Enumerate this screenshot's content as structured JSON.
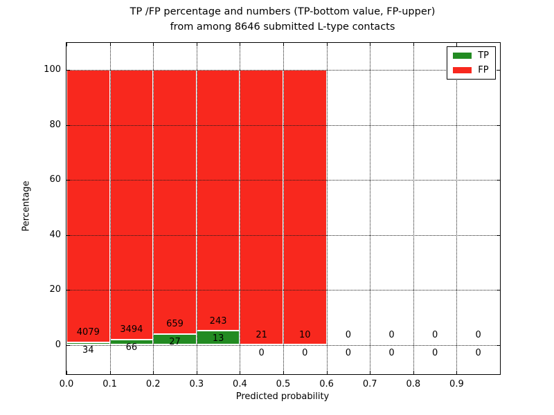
{
  "figure": {
    "title_line1": "TP /FP percentage and numbers (TP-bottom value, FP-upper)",
    "title_line2": "from among 8646 submitted L-type contacts",
    "xlabel": "Predicted probability",
    "ylabel": "Percentage"
  },
  "legend": {
    "items": [
      {
        "label": "TP",
        "color": "#228b22"
      },
      {
        "label": "FP",
        "color": "#f8281e"
      }
    ]
  },
  "axes": {
    "ytick_values": [
      0,
      20,
      40,
      60,
      80,
      100
    ],
    "ytick_labels": [
      "0",
      "20",
      "40",
      "60",
      "80",
      "100"
    ],
    "xtick_labels": [
      "0.0",
      "0.1",
      "0.2",
      "0.3",
      "0.4",
      "0.5",
      "0.6",
      "0.7",
      "0.8",
      "0.9"
    ]
  },
  "chart_data": {
    "type": "bar",
    "stacked": true,
    "normalized_to_percent": 100,
    "title": "TP /FP percentage and numbers (TP-bottom value, FP-upper) from among 8646 submitted L-type contacts",
    "xlabel": "Predicted probability",
    "ylabel": "Percentage",
    "total_contacts": 8646,
    "bin_edges": [
      0.0,
      0.1,
      0.2,
      0.3,
      0.4,
      0.5,
      0.6,
      0.7,
      0.8,
      0.9,
      1.0
    ],
    "categories": [
      "0.0-0.1",
      "0.1-0.2",
      "0.2-0.3",
      "0.3-0.4",
      "0.4-0.5",
      "0.5-0.6",
      "0.6-0.7",
      "0.7-0.8",
      "0.8-0.9",
      "0.9-1.0"
    ],
    "series": [
      {
        "name": "TP",
        "color": "#228b22",
        "counts": [
          34,
          66,
          27,
          13,
          0,
          0,
          0,
          0,
          0,
          0
        ]
      },
      {
        "name": "FP",
        "color": "#f8281e",
        "counts": [
          4079,
          3494,
          659,
          243,
          21,
          10,
          0,
          0,
          0,
          0
        ]
      }
    ],
    "xlim": [
      0.0,
      1.0
    ],
    "ylim": [
      -11,
      110
    ],
    "yticks": [
      0,
      20,
      40,
      60,
      80,
      100
    ],
    "xticks": [
      0.0,
      0.1,
      0.2,
      0.3,
      0.4,
      0.5,
      0.6,
      0.7,
      0.8,
      0.9
    ],
    "grid": "dotted",
    "legend_position": "upper right"
  }
}
